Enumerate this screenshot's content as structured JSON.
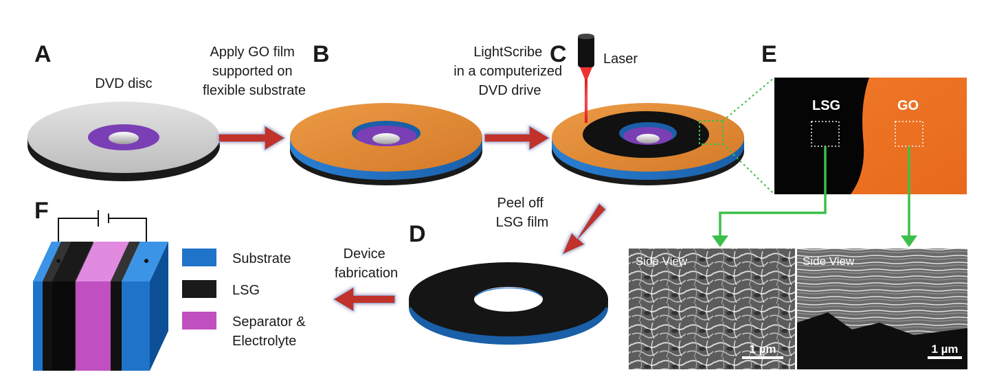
{
  "panels": {
    "a": {
      "letter": "A",
      "caption": "DVD disc"
    },
    "b": {
      "letter": "B"
    },
    "c": {
      "letter": "C",
      "laser_label": "Laser"
    },
    "d": {
      "letter": "D"
    },
    "e": {
      "letter": "E",
      "lsg_label": "LSG",
      "go_label": "GO"
    },
    "f": {
      "letter": "F"
    }
  },
  "steps": {
    "a_to_b": [
      "Apply GO film",
      "supported on",
      "flexible substrate"
    ],
    "b_to_c": [
      "LightScribe",
      "in a computerized",
      "DVD drive"
    ],
    "c_to_d": [
      "Peel off",
      "LSG film"
    ],
    "d_to_f": [
      "Device",
      "fabrication"
    ]
  },
  "legend": [
    {
      "label": [
        "Substrate"
      ],
      "color": "#1f73c9"
    },
    {
      "label": [
        "LSG"
      ],
      "color": "#1a1a1a"
    },
    {
      "label": [
        "Separator &",
        "Electrolyte"
      ],
      "color": "#c050c0"
    }
  ],
  "sem": [
    {
      "label": "Side View",
      "scale": "1 µm"
    },
    {
      "label": "Side View",
      "scale": "1 µm"
    }
  ],
  "colors": {
    "go": "#e0852f",
    "lsg": "#141414",
    "substrate": "#2e86d6",
    "dvd_label_ring": "#7b3fb5",
    "arrow_red": "#c0302b",
    "connector_green": "#39b54a"
  }
}
